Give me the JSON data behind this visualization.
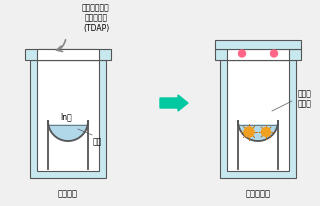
{
  "bg_color": "#f0f0f0",
  "vessel_fill": "#c8e8f0",
  "vessel_inner_fill": "#ffffff",
  "vessel_stroke": "#555555",
  "liquid_fill": "#b0d8e8",
  "arrow_color": "#00c8a0",
  "seal_color": "#ff6688",
  "nanoparticle_color": "#f0a020",
  "nanoparticle_stroke": "#c07010",
  "text_color": "#000000",
  "title_left": "爆発性のない\nリン化合物\n(TDAP)",
  "label_in_salt": "In塩",
  "label_solvent": "溶媒",
  "label_vessel": "圧力容器",
  "label_sealed": "密封、加熱",
  "label_inert": "不活性\n雰囲気"
}
